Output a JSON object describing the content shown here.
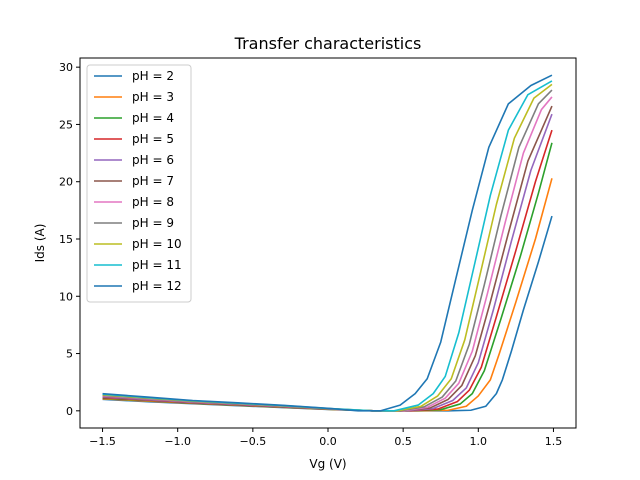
{
  "chart_data": {
    "type": "line",
    "title": "Transfer characteristics",
    "xlabel": "Vg (V)",
    "ylabel": "Ids (A)",
    "xlim": [
      -1.65,
      1.65
    ],
    "ylim": [
      -1.5,
      30.8
    ],
    "xticks": [
      -1.5,
      -1.0,
      -0.5,
      0.0,
      0.5,
      1.0,
      1.5
    ],
    "xtick_labels": [
      "−1.5",
      "−1.0",
      "−0.5",
      "0.0",
      "0.5",
      "1.0",
      "1.5"
    ],
    "yticks": [
      0,
      5,
      10,
      15,
      20,
      25,
      30
    ],
    "ytick_labels": [
      "0",
      "5",
      "10",
      "15",
      "20",
      "25",
      "30"
    ],
    "grid": false,
    "legend_position": "upper-left",
    "series": [
      {
        "name": "pH = 2",
        "color": "#1f77b4",
        "points": [
          [
            -1.5,
            1.0
          ],
          [
            -1.2,
            0.8
          ],
          [
            -0.9,
            0.62
          ],
          [
            -0.6,
            0.45
          ],
          [
            -0.3,
            0.28
          ],
          [
            0.0,
            0.12
          ],
          [
            0.3,
            0.0
          ],
          [
            0.6,
            0.0
          ],
          [
            0.8,
            0.0
          ],
          [
            0.95,
            0.05
          ],
          [
            1.05,
            0.4
          ],
          [
            1.12,
            1.5
          ],
          [
            1.16,
            2.7
          ],
          [
            1.22,
            5.2
          ],
          [
            1.3,
            8.8
          ],
          [
            1.4,
            13.0
          ],
          [
            1.49,
            17.0
          ]
        ]
      },
      {
        "name": "pH = 3",
        "color": "#ff7f0e",
        "points": [
          [
            -1.5,
            1.05
          ],
          [
            -1.2,
            0.85
          ],
          [
            -0.9,
            0.65
          ],
          [
            -0.6,
            0.48
          ],
          [
            -0.3,
            0.3
          ],
          [
            0.0,
            0.13
          ],
          [
            0.3,
            0.0
          ],
          [
            0.6,
            0.0
          ],
          [
            0.8,
            0.05
          ],
          [
            0.92,
            0.4
          ],
          [
            1.0,
            1.3
          ],
          [
            1.08,
            2.7
          ],
          [
            1.14,
            5.0
          ],
          [
            1.25,
            9.5
          ],
          [
            1.38,
            15.0
          ],
          [
            1.49,
            20.3
          ]
        ]
      },
      {
        "name": "pH = 4",
        "color": "#2ca02c",
        "points": [
          [
            -1.5,
            1.1
          ],
          [
            -1.2,
            0.9
          ],
          [
            -0.9,
            0.68
          ],
          [
            -0.6,
            0.5
          ],
          [
            -0.3,
            0.32
          ],
          [
            0.0,
            0.14
          ],
          [
            0.3,
            0.0
          ],
          [
            0.55,
            0.0
          ],
          [
            0.75,
            0.1
          ],
          [
            0.88,
            0.6
          ],
          [
            0.96,
            1.5
          ],
          [
            1.04,
            3.5
          ],
          [
            1.15,
            8.0
          ],
          [
            1.28,
            13.5
          ],
          [
            1.4,
            19.0
          ],
          [
            1.49,
            23.4
          ]
        ]
      },
      {
        "name": "pH = 5",
        "color": "#d62728",
        "points": [
          [
            -1.5,
            1.15
          ],
          [
            -1.2,
            0.93
          ],
          [
            -0.9,
            0.7
          ],
          [
            -0.6,
            0.52
          ],
          [
            -0.3,
            0.34
          ],
          [
            0.0,
            0.15
          ],
          [
            0.3,
            0.0
          ],
          [
            0.55,
            0.0
          ],
          [
            0.73,
            0.15
          ],
          [
            0.86,
            0.8
          ],
          [
            0.94,
            1.8
          ],
          [
            1.02,
            3.8
          ],
          [
            1.12,
            8.2
          ],
          [
            1.25,
            14.0
          ],
          [
            1.38,
            20.0
          ],
          [
            1.49,
            24.5
          ]
        ]
      },
      {
        "name": "pH = 6",
        "color": "#9467bd",
        "points": [
          [
            -1.5,
            1.2
          ],
          [
            -1.2,
            0.96
          ],
          [
            -0.9,
            0.73
          ],
          [
            -0.6,
            0.55
          ],
          [
            -0.3,
            0.36
          ],
          [
            0.0,
            0.16
          ],
          [
            0.3,
            0.0
          ],
          [
            0.52,
            0.0
          ],
          [
            0.7,
            0.2
          ],
          [
            0.83,
            0.9
          ],
          [
            0.92,
            2.0
          ],
          [
            1.0,
            4.2
          ],
          [
            1.1,
            8.8
          ],
          [
            1.22,
            14.8
          ],
          [
            1.35,
            21.0
          ],
          [
            1.49,
            25.9
          ]
        ]
      },
      {
        "name": "pH = 7",
        "color": "#8c564b",
        "points": [
          [
            -1.5,
            1.25
          ],
          [
            -1.2,
            1.0
          ],
          [
            -0.9,
            0.76
          ],
          [
            -0.6,
            0.57
          ],
          [
            -0.3,
            0.38
          ],
          [
            0.0,
            0.17
          ],
          [
            0.3,
            0.0
          ],
          [
            0.5,
            0.0
          ],
          [
            0.68,
            0.25
          ],
          [
            0.8,
            1.0
          ],
          [
            0.89,
            2.2
          ],
          [
            0.98,
            4.8
          ],
          [
            1.08,
            9.5
          ],
          [
            1.2,
            15.5
          ],
          [
            1.33,
            21.8
          ],
          [
            1.49,
            26.6
          ]
        ]
      },
      {
        "name": "pH = 8",
        "color": "#e377c2",
        "points": [
          [
            -1.5,
            1.3
          ],
          [
            -1.2,
            1.04
          ],
          [
            -0.9,
            0.79
          ],
          [
            -0.6,
            0.6
          ],
          [
            -0.3,
            0.4
          ],
          [
            0.0,
            0.18
          ],
          [
            0.3,
            0.0
          ],
          [
            0.5,
            0.0
          ],
          [
            0.66,
            0.3
          ],
          [
            0.78,
            1.1
          ],
          [
            0.87,
            2.4
          ],
          [
            0.96,
            5.2
          ],
          [
            1.06,
            10.2
          ],
          [
            1.18,
            16.5
          ],
          [
            1.3,
            22.5
          ],
          [
            1.42,
            26.3
          ],
          [
            1.49,
            27.4
          ]
        ]
      },
      {
        "name": "pH = 9",
        "color": "#7f7f7f",
        "points": [
          [
            -1.5,
            1.35
          ],
          [
            -1.2,
            1.08
          ],
          [
            -0.9,
            0.82
          ],
          [
            -0.6,
            0.62
          ],
          [
            -0.3,
            0.42
          ],
          [
            0.0,
            0.19
          ],
          [
            0.3,
            0.0
          ],
          [
            0.48,
            0.0
          ],
          [
            0.64,
            0.35
          ],
          [
            0.76,
            1.2
          ],
          [
            0.85,
            2.6
          ],
          [
            0.94,
            5.8
          ],
          [
            1.04,
            11.0
          ],
          [
            1.15,
            17.0
          ],
          [
            1.27,
            23.0
          ],
          [
            1.4,
            26.8
          ],
          [
            1.49,
            28.0
          ]
        ]
      },
      {
        "name": "pH = 10",
        "color": "#bcbd22",
        "points": [
          [
            -1.5,
            1.4
          ],
          [
            -1.2,
            1.12
          ],
          [
            -0.9,
            0.85
          ],
          [
            -0.6,
            0.65
          ],
          [
            -0.3,
            0.44
          ],
          [
            0.0,
            0.2
          ],
          [
            0.3,
            0.0
          ],
          [
            0.46,
            0.0
          ],
          [
            0.62,
            0.4
          ],
          [
            0.73,
            1.3
          ],
          [
            0.82,
            2.8
          ],
          [
            0.91,
            6.2
          ],
          [
            1.01,
            11.8
          ],
          [
            1.12,
            18.0
          ],
          [
            1.24,
            23.8
          ],
          [
            1.37,
            27.3
          ],
          [
            1.49,
            28.5
          ]
        ]
      },
      {
        "name": "pH = 11",
        "color": "#17becf",
        "points": [
          [
            -1.5,
            1.45
          ],
          [
            -1.2,
            1.16
          ],
          [
            -0.9,
            0.88
          ],
          [
            -0.6,
            0.67
          ],
          [
            -0.3,
            0.46
          ],
          [
            0.0,
            0.21
          ],
          [
            0.3,
            0.0
          ],
          [
            0.44,
            0.0
          ],
          [
            0.6,
            0.5
          ],
          [
            0.7,
            1.5
          ],
          [
            0.78,
            3.0
          ],
          [
            0.87,
            6.8
          ],
          [
            0.97,
            12.5
          ],
          [
            1.08,
            18.8
          ],
          [
            1.2,
            24.5
          ],
          [
            1.33,
            27.6
          ],
          [
            1.49,
            28.8
          ]
        ]
      },
      {
        "name": "pH = 12",
        "color": "#1f77b4",
        "points": [
          [
            -1.5,
            1.5
          ],
          [
            -1.2,
            1.2
          ],
          [
            -0.9,
            0.9
          ],
          [
            -0.6,
            0.7
          ],
          [
            -0.3,
            0.48
          ],
          [
            0.0,
            0.22
          ],
          [
            0.2,
            0.0
          ],
          [
            0.35,
            0.0
          ],
          [
            0.48,
            0.5
          ],
          [
            0.58,
            1.5
          ],
          [
            0.66,
            2.8
          ],
          [
            0.75,
            6.0
          ],
          [
            0.85,
            11.5
          ],
          [
            0.96,
            17.5
          ],
          [
            1.07,
            23.0
          ],
          [
            1.2,
            26.8
          ],
          [
            1.35,
            28.4
          ],
          [
            1.49,
            29.3
          ]
        ]
      }
    ]
  }
}
